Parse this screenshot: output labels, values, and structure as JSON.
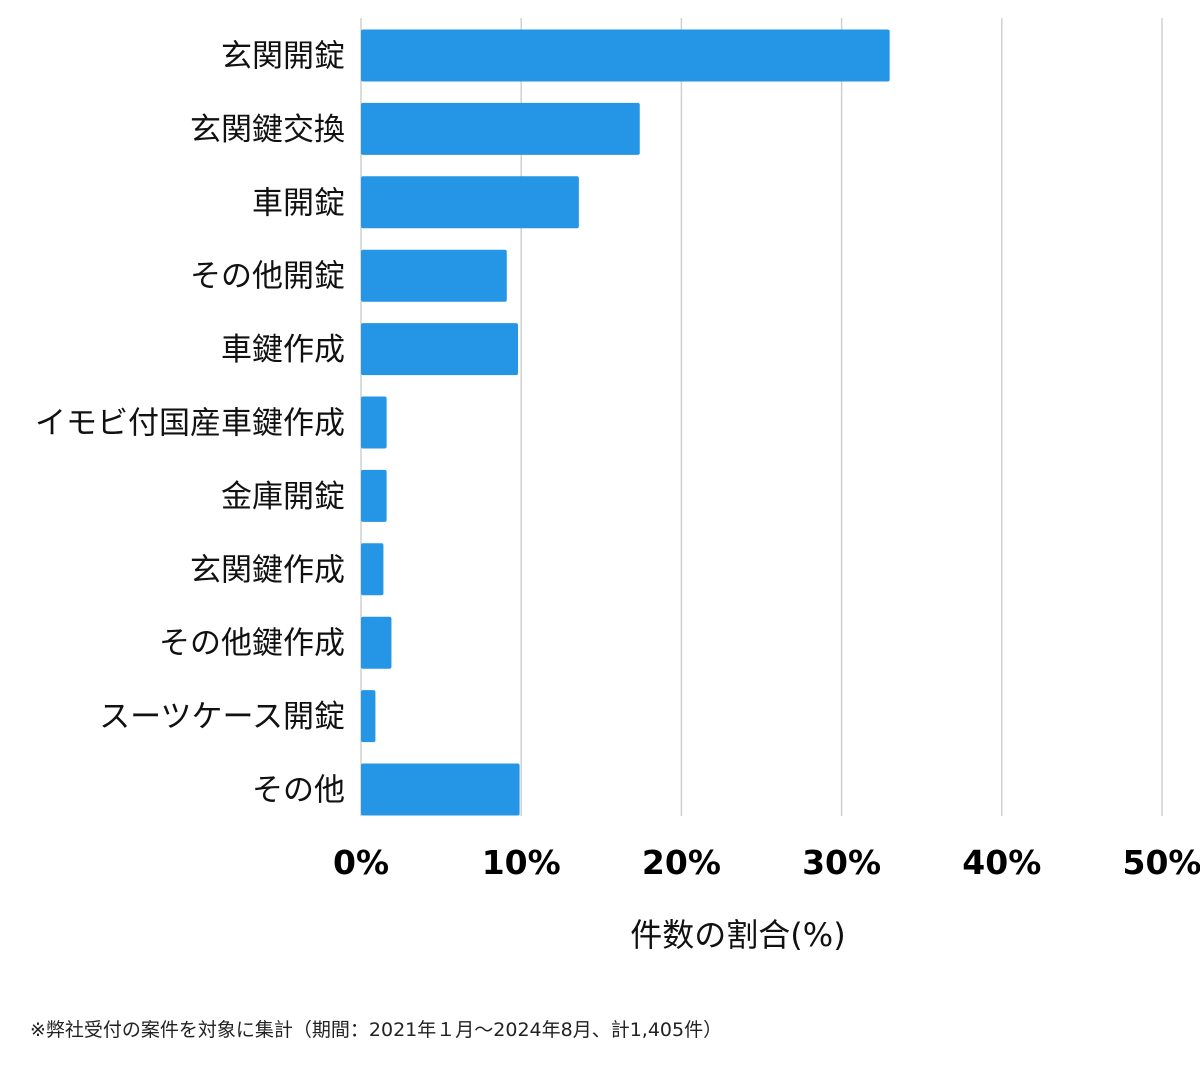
{
  "chart_data": {
    "type": "bar",
    "orientation": "horizontal",
    "categories": [
      "玄関開錠",
      "玄関鍵交換",
      "車開錠",
      "その他開錠",
      "車鍵作成",
      "イモビ付国産車鍵作成",
      "金庫開錠",
      "玄関鍵作成",
      "その他鍵作成",
      "スーツケース開錠",
      "その他"
    ],
    "values": [
      33.0,
      17.4,
      13.6,
      9.1,
      9.8,
      1.6,
      1.6,
      1.4,
      1.9,
      0.9,
      9.9
    ],
    "xlabel": "件数の割合(%)",
    "ylabel": "",
    "xlim": [
      0,
      50
    ],
    "xticks": [
      "0%",
      "10%",
      "20%",
      "30%",
      "40%",
      "50%"
    ],
    "xtick_values": [
      0,
      10,
      20,
      30,
      40,
      50
    ],
    "grid": "vertical",
    "bar_color": "#2596e6",
    "grid_color": "#d0d0d0"
  },
  "footnote": "※弊社受付の案件を対象に集計（期間：2021年１月〜2024年8月、計1,405件）"
}
